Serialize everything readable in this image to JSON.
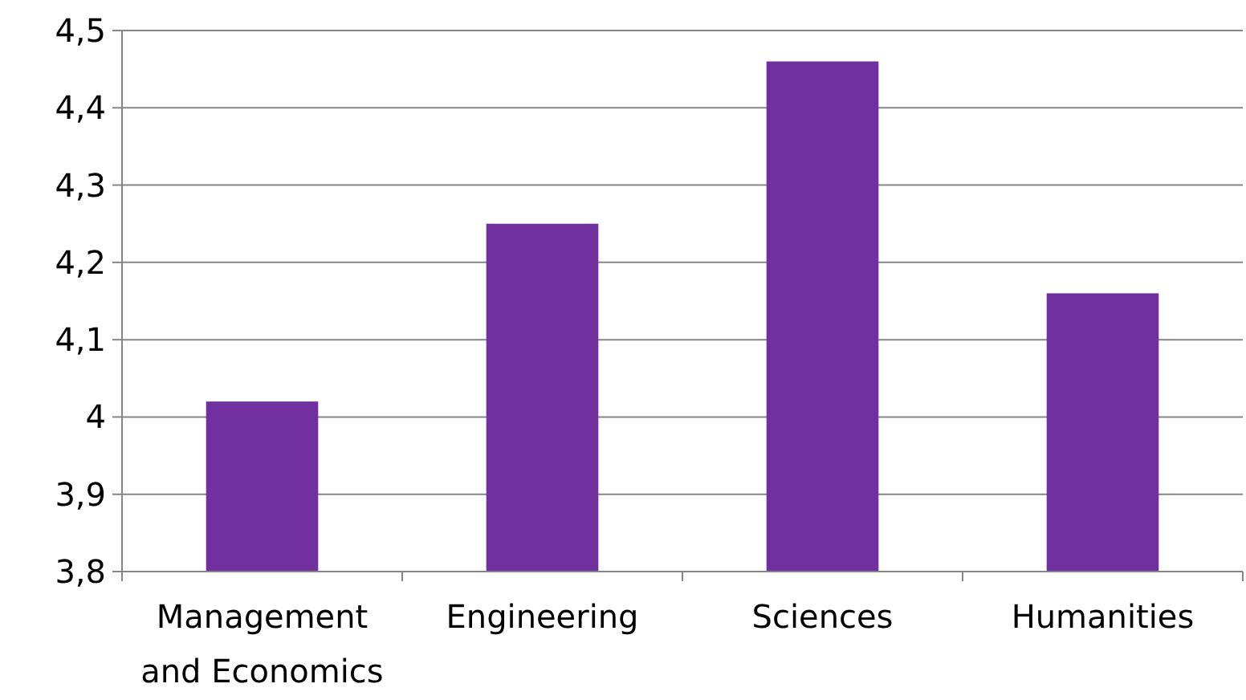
{
  "chart_data": {
    "type": "bar",
    "categories": [
      "Management and Economics",
      "Engineering",
      "Sciences",
      "Humanities"
    ],
    "values": [
      4.02,
      4.25,
      4.46,
      4.16
    ],
    "color": "#7030a0",
    "ylim": [
      3.8,
      4.5
    ],
    "yticks": [
      {
        "value": 3.8,
        "label": "3,8"
      },
      {
        "value": 3.9,
        "label": "3,9"
      },
      4,
      {
        "value": 4.1,
        "label": "4,1"
      },
      {
        "value": 4.2,
        "label": "4,2"
      },
      {
        "value": 4.3,
        "label": "4,3"
      },
      {
        "value": 4.4,
        "label": "4,4"
      },
      {
        "value": 4.5,
        "label": "4,5"
      }
    ],
    "grid": "y"
  }
}
